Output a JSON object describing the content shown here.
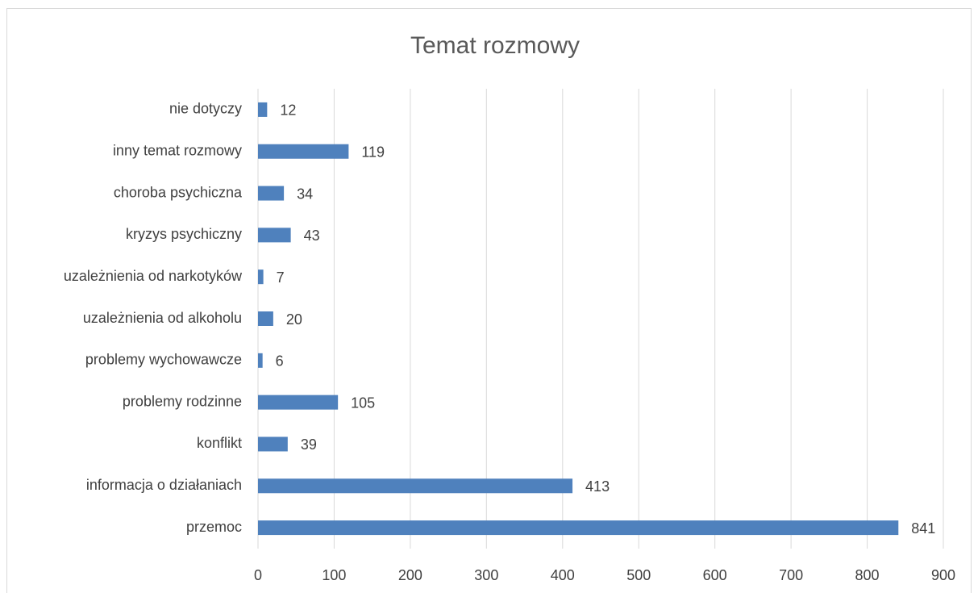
{
  "chart_data": {
    "type": "bar",
    "orientation": "horizontal",
    "title": "Temat rozmowy",
    "categories": [
      "nie dotyczy",
      "inny temat rozmowy",
      "choroba psychiczna",
      "kryzys psychiczny",
      "uzależnienia od narkotyków",
      "uzależnienia od alkoholu",
      "problemy wychowawcze",
      "problemy rodzinne",
      "konflikt",
      "informacja o działaniach",
      "przemoc"
    ],
    "values": [
      12,
      119,
      34,
      43,
      7,
      20,
      6,
      105,
      39,
      413,
      841
    ],
    "color": "#4f81bd",
    "xlim": [
      0,
      900
    ],
    "xticks": [
      0,
      100,
      200,
      300,
      400,
      500,
      600,
      700,
      800,
      900
    ],
    "grid": true
  }
}
